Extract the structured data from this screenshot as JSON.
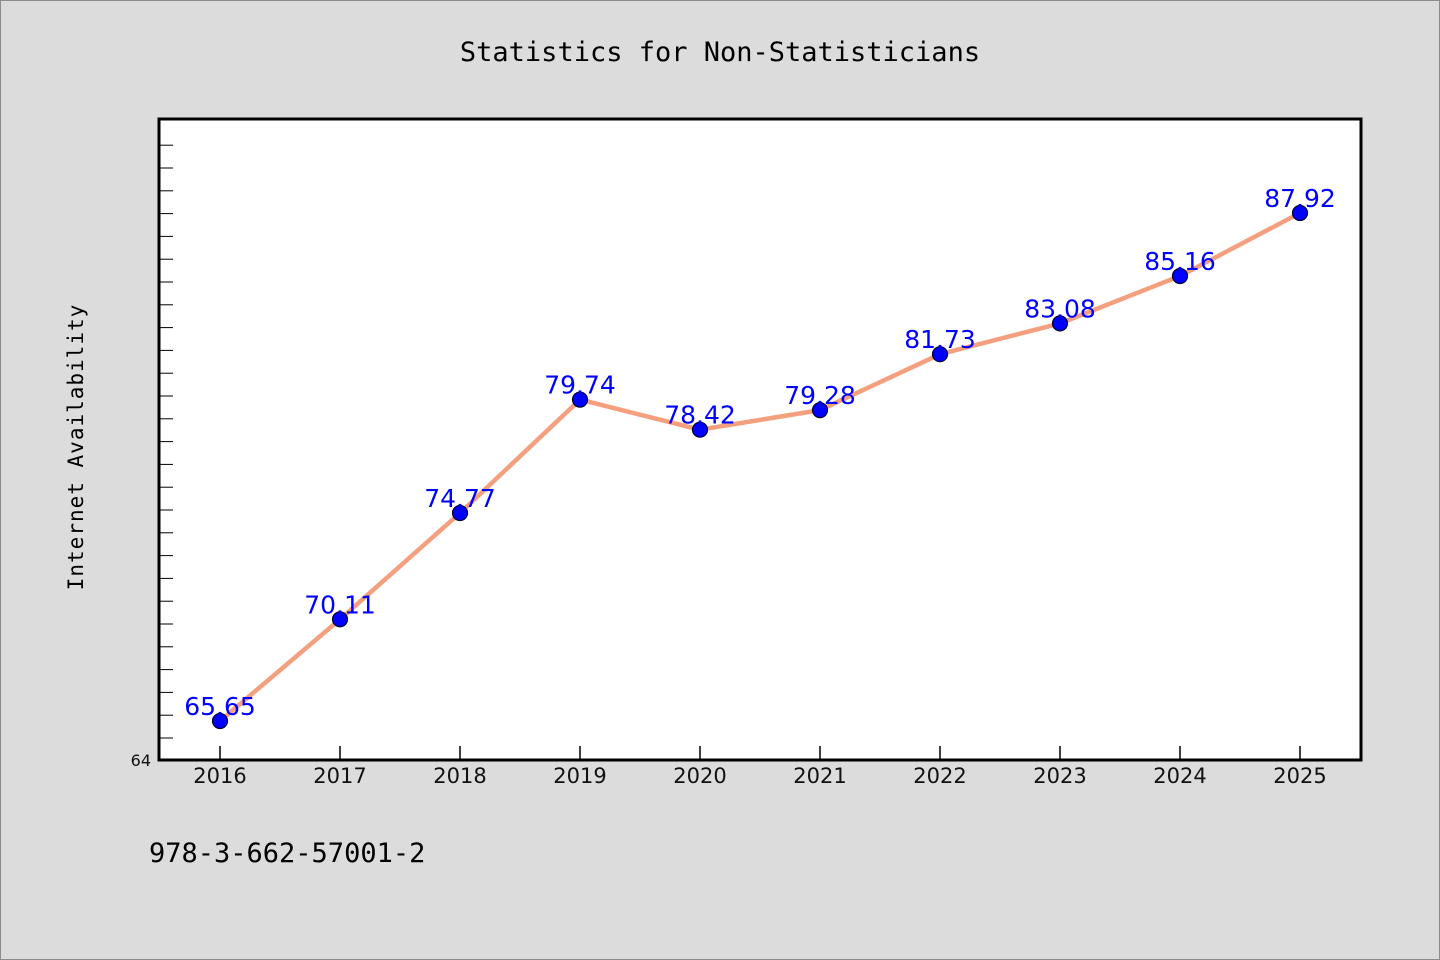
{
  "colors": {
    "background": "#dcdcdc",
    "plot_background": "#ffffff",
    "line": "#f4a07f",
    "marker": "#0000ff",
    "data_label": "#0000ff"
  },
  "footer": {
    "isbn": "978-3-662-57001-2"
  },
  "chart_data": {
    "type": "line",
    "title": "Statistics for Non-Statisticians",
    "xlabel": "",
    "ylabel": "Internet Availability",
    "ylim": [
      64,
      92
    ],
    "y_tick_labels": [
      "64"
    ],
    "categories": [
      "2016",
      "2017",
      "2018",
      "2019",
      "2020",
      "2021",
      "2022",
      "2023",
      "2024",
      "2025"
    ],
    "values": [
      65.65,
      70.11,
      74.77,
      79.74,
      78.42,
      79.28,
      81.73,
      83.08,
      85.16,
      87.92
    ],
    "value_labels": [
      "65.65",
      "70.11",
      "74.77",
      "79.74",
      "78.42",
      "79.28",
      "81.73",
      "83.08",
      "85.16",
      "87.92"
    ],
    "grid": false,
    "legend": "none"
  }
}
